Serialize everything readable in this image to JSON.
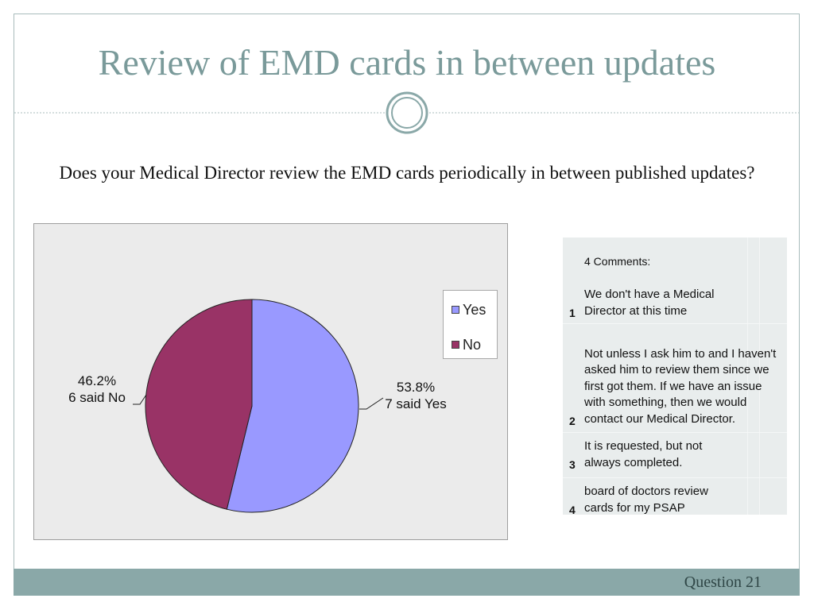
{
  "slide": {
    "title": "Review of EMD cards in between updates",
    "question": "Does your Medical Director review the EMD cards periodically in between published updates?",
    "footer": "Question 21"
  },
  "chart_data": {
    "type": "pie",
    "categories": [
      "Yes",
      "No"
    ],
    "values": [
      53.8,
      46.2
    ],
    "counts": [
      7,
      6
    ],
    "colors": [
      "#9999ff",
      "#993366"
    ],
    "data_labels": [
      {
        "pct": "53.8%",
        "text": "7 said Yes"
      },
      {
        "pct": "46.2%",
        "text": "6 said No"
      }
    ],
    "legend": {
      "placement": "right",
      "entries": [
        "Yes",
        "No"
      ]
    }
  },
  "comments": {
    "header": "4 Comments:",
    "rows": [
      {
        "num": "1",
        "text": "We don't have a Medical Director at this time"
      },
      {
        "num": "2",
        "text": "Not unless I ask him to and I haven't asked him to review them since we first got them.  If we have an issue with something, then we would contact our Medical Director."
      },
      {
        "num": "3",
        "text": "It is requested, but not always completed."
      },
      {
        "num": "4",
        "text": "board of doctors review cards for my PSAP"
      }
    ]
  }
}
